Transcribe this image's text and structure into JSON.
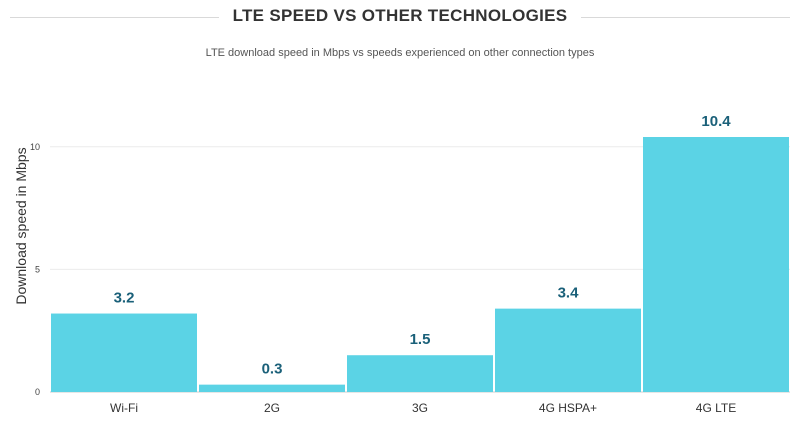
{
  "chart_data": {
    "type": "bar",
    "title": "LTE SPEED VS OTHER TECHNOLOGIES",
    "subtitle": "LTE download speed in Mbps vs speeds experienced on other connection types",
    "xlabel": "",
    "ylabel": "Download speed in Mbps",
    "categories": [
      "Wi-Fi",
      "2G",
      "3G",
      "4G HSPA+",
      "4G LTE"
    ],
    "values": [
      3.2,
      0.3,
      1.5,
      3.4,
      10.4
    ],
    "data_labels": [
      "3.2",
      "0.3",
      "1.5",
      "3.4",
      "10.4"
    ],
    "yticks": [
      0,
      5,
      10
    ],
    "ylim": [
      0,
      10.4
    ],
    "grid": true,
    "bar_color": "#5bd3e5",
    "label_color": "#1a6079"
  }
}
